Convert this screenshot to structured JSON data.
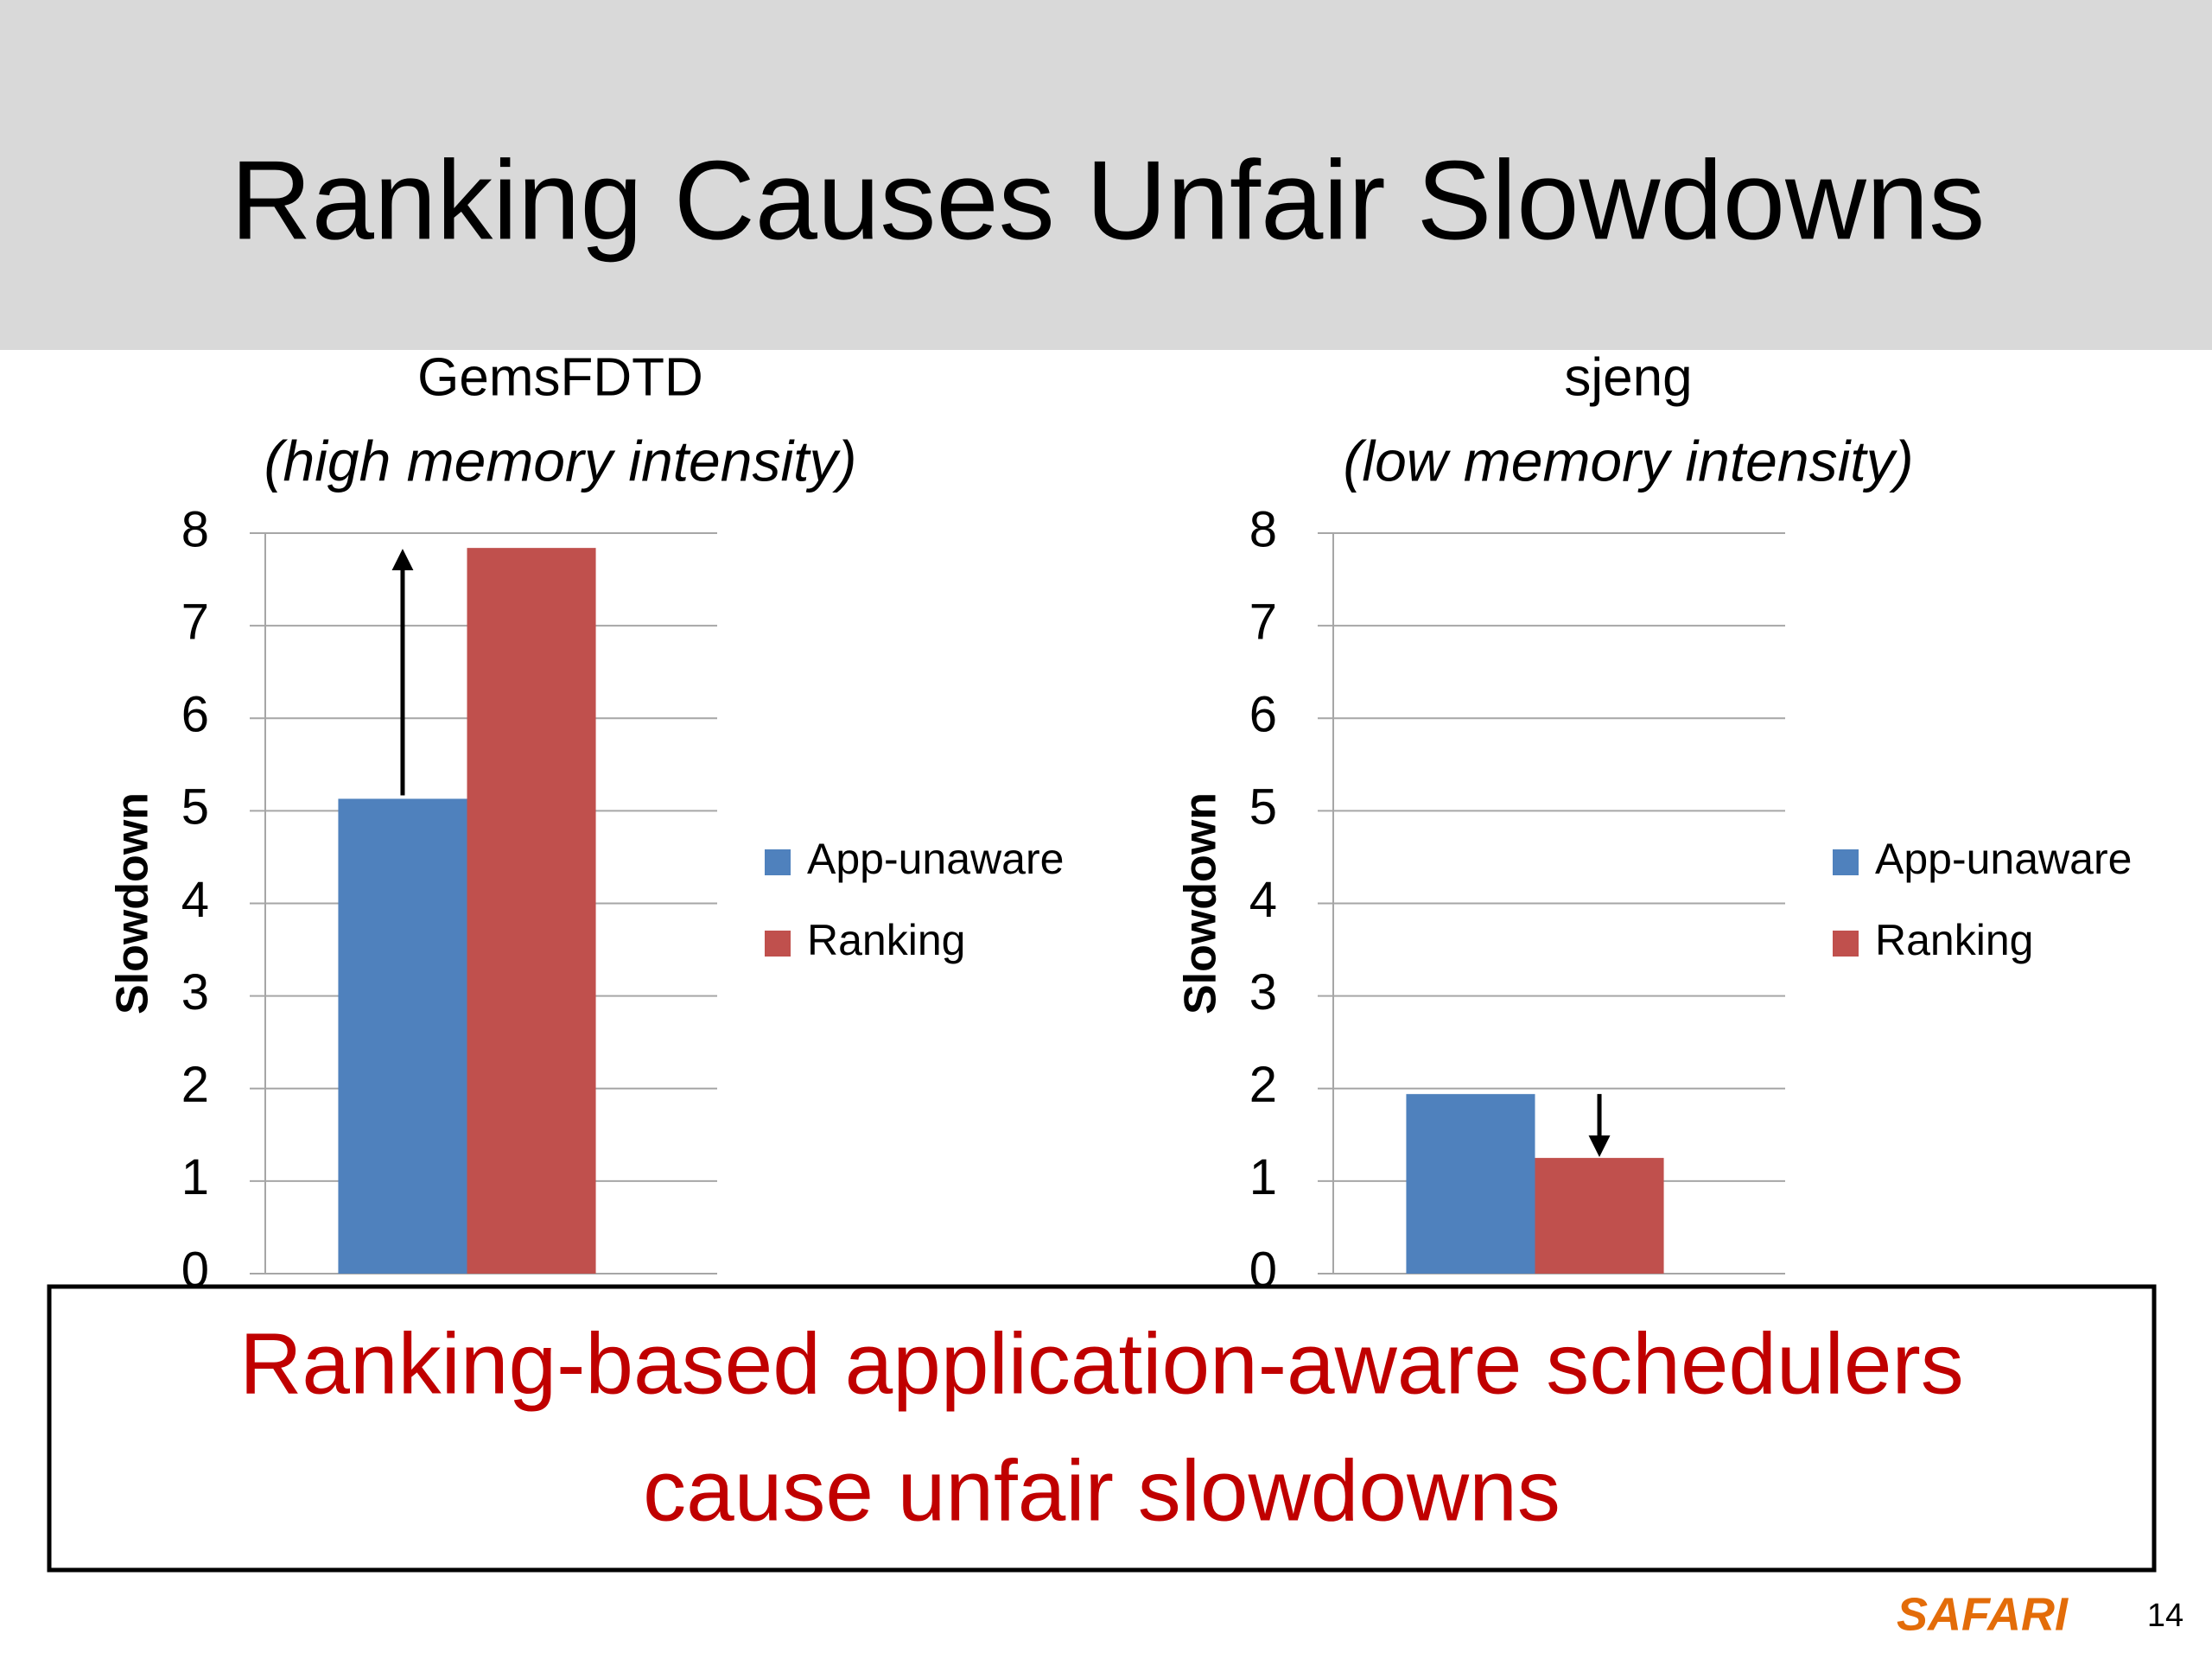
{
  "title": "Ranking Causes Unfair Slowdowns",
  "chart_data": [
    {
      "type": "bar",
      "title": "GemsFDTD",
      "subtitle": "(high memory intensity)",
      "y_label": "Slowdown",
      "categories": [
        null
      ],
      "series": [
        {
          "name": "App-unaware",
          "color": "#4f81bd",
          "values": [
            5.13
          ]
        },
        {
          "name": "Ranking",
          "color": "#c0504d",
          "values": [
            7.84
          ]
        }
      ],
      "ylim": [
        0,
        8
      ],
      "yticks": [
        0,
        1,
        2,
        3,
        4,
        5,
        6,
        7,
        8
      ],
      "grid": true,
      "legend": "right"
    },
    {
      "type": "bar",
      "title": "sjeng",
      "subtitle": "(low memory intensity)",
      "y_label": "Slowdown",
      "categories": [
        null
      ],
      "series": [
        {
          "name": "App-unaware",
          "color": "#4f81bd",
          "values": [
            1.94
          ]
        },
        {
          "name": "Ranking",
          "color": "#c0504d",
          "values": [
            1.25
          ]
        }
      ],
      "ylim": [
        0,
        8
      ],
      "yticks": [
        0,
        1,
        2,
        3,
        4,
        5,
        6,
        7,
        8
      ],
      "grid": true,
      "legend": "right"
    }
  ],
  "callout": [
    "Ranking-based application-aware schedulers",
    "cause unfair slowdowns"
  ],
  "footer": {
    "logo": "SAFARI",
    "page_number": "14"
  }
}
